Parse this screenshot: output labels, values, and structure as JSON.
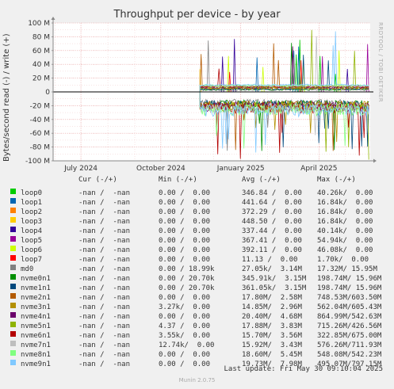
{
  "chart_data": {
    "type": "line",
    "title": "Throughput per device - by year",
    "ylabel": "Bytes/second read (-) / write (+)",
    "ylim": [
      -100000000,
      100000000
    ],
    "yticks": [
      {
        "value": 100000000,
        "label": "100 M"
      },
      {
        "value": 80000000,
        "label": "80 M"
      },
      {
        "value": 60000000,
        "label": "60 M"
      },
      {
        "value": 40000000,
        "label": "40 M"
      },
      {
        "value": 20000000,
        "label": "20 M"
      },
      {
        "value": 0,
        "label": "0"
      },
      {
        "value": -20000000,
        "label": "-20 M"
      },
      {
        "value": -40000000,
        "label": "-40 M"
      },
      {
        "value": -60000000,
        "label": "-60 M"
      },
      {
        "value": -80000000,
        "label": "-80 M"
      },
      {
        "value": -100000000,
        "label": "-100 M"
      }
    ],
    "xlim": [
      "2024-05-30",
      "2025-05-30"
    ],
    "xticks": [
      {
        "date": "2024-07-01",
        "label": "July 2024"
      },
      {
        "date": "2024-10-01",
        "label": "October 2024"
      },
      {
        "date": "2025-01-01",
        "label": "January 2025"
      },
      {
        "date": "2025-04-01",
        "label": "April 2025"
      }
    ],
    "grid": true,
    "activity_start": "2024-11-15",
    "series": [
      {
        "name": "loop0",
        "color": "#00cc00",
        "cur": "-nan /  -nan",
        "min": "0.00 /  0.00",
        "avg": "346.84 /  0.00",
        "max": "40.26k/  0.00"
      },
      {
        "name": "loop1",
        "color": "#0066b3",
        "cur": "-nan /  -nan",
        "min": "0.00 /  0.00",
        "avg": "441.64 /  0.00",
        "max": "16.84k/  0.00"
      },
      {
        "name": "loop2",
        "color": "#ff8000",
        "cur": "-nan /  -nan",
        "min": "0.00 /  0.00",
        "avg": "372.29 /  0.00",
        "max": "16.84k/  0.00"
      },
      {
        "name": "loop3",
        "color": "#ffcc00",
        "cur": "-nan /  -nan",
        "min": "0.00 /  0.00",
        "avg": "448.50 /  0.00",
        "max": "16.84k/  0.00"
      },
      {
        "name": "loop4",
        "color": "#330099",
        "cur": "-nan /  -nan",
        "min": "0.00 /  0.00",
        "avg": "337.44 /  0.00",
        "max": "40.14k/  0.00"
      },
      {
        "name": "loop5",
        "color": "#990099",
        "cur": "-nan /  -nan",
        "min": "0.00 /  0.00",
        "avg": "367.41 /  0.00",
        "max": "54.94k/  0.00"
      },
      {
        "name": "loop6",
        "color": "#ccff00",
        "cur": "-nan /  -nan",
        "min": "0.00 /  0.00",
        "avg": "392.11 /  0.00",
        "max": "46.08k/  0.00"
      },
      {
        "name": "loop7",
        "color": "#ff0000",
        "cur": "-nan /  -nan",
        "min": "0.00 /  0.00",
        "avg": "11.13 /  0.00",
        "max": "1.70k/  0.00"
      },
      {
        "name": "md0",
        "color": "#808080",
        "cur": "-nan /  -nan",
        "min": "0.00 / 18.99k",
        "avg": "27.05k/  3.14M",
        "max": "17.32M/ 15.95M"
      },
      {
        "name": "nvme0n1",
        "color": "#008f00",
        "cur": "-nan /  -nan",
        "min": "0.00 / 20.70k",
        "avg": "345.91k/  3.15M",
        "max": "198.74M/ 15.96M"
      },
      {
        "name": "nvme1n1",
        "color": "#00487d",
        "cur": "-nan /  -nan",
        "min": "0.00 / 20.70k",
        "avg": "361.05k/  3.15M",
        "max": "198.74M/ 15.96M"
      },
      {
        "name": "nvme2n1",
        "color": "#b35a00",
        "cur": "-nan /  -nan",
        "min": "0.00 /  0.00",
        "avg": "17.80M/  2.58M",
        "max": "748.53M/603.50M"
      },
      {
        "name": "nvme3n1",
        "color": "#b38f00",
        "cur": "-nan /  -nan",
        "min": "3.27k/  0.00",
        "avg": "14.85M/  2.96M",
        "max": "562.04M/605.43M"
      },
      {
        "name": "nvme4n1",
        "color": "#6b006b",
        "cur": "-nan /  -nan",
        "min": "0.00 /  0.00",
        "avg": "20.40M/  4.68M",
        "max": "864.99M/542.63M"
      },
      {
        "name": "nvme5n1",
        "color": "#8fb300",
        "cur": "-nan /  -nan",
        "min": "4.37 /  0.00",
        "avg": "17.88M/  3.83M",
        "max": "715.26M/426.56M"
      },
      {
        "name": "nvme6n1",
        "color": "#b30000",
        "cur": "-nan /  -nan",
        "min": "3.55k/  0.00",
        "avg": "15.70M/  3.56M",
        "max": "322.85M/675.00M"
      },
      {
        "name": "nvme7n1",
        "color": "#bebebe",
        "cur": "-nan /  -nan",
        "min": "12.74k/  0.00",
        "avg": "15.92M/  3.43M",
        "max": "576.26M/711.93M"
      },
      {
        "name": "nvme8n1",
        "color": "#80ff80",
        "cur": "-nan /  -nan",
        "min": "0.00 /  0.00",
        "avg": "18.60M/  5.45M",
        "max": "548.08M/542.23M"
      },
      {
        "name": "nvme9n1",
        "color": "#80c9ff",
        "cur": "-nan /  -nan",
        "min": "0.00 /  0.00",
        "avg": "19.73M/  7.98M",
        "max": "495.07M/797.15M"
      }
    ]
  },
  "legend_headers": {
    "cur": "Cur (-/+)",
    "min": "Min (-/+)",
    "avg": "Avg (-/+)",
    "max": "Max (-/+)"
  },
  "watermark": "RRDTOOL / TOBI OETIKER",
  "last_update": "Last update: Fri May 30 09:10:04 2025",
  "munin_version": "Munin 2.0.75"
}
